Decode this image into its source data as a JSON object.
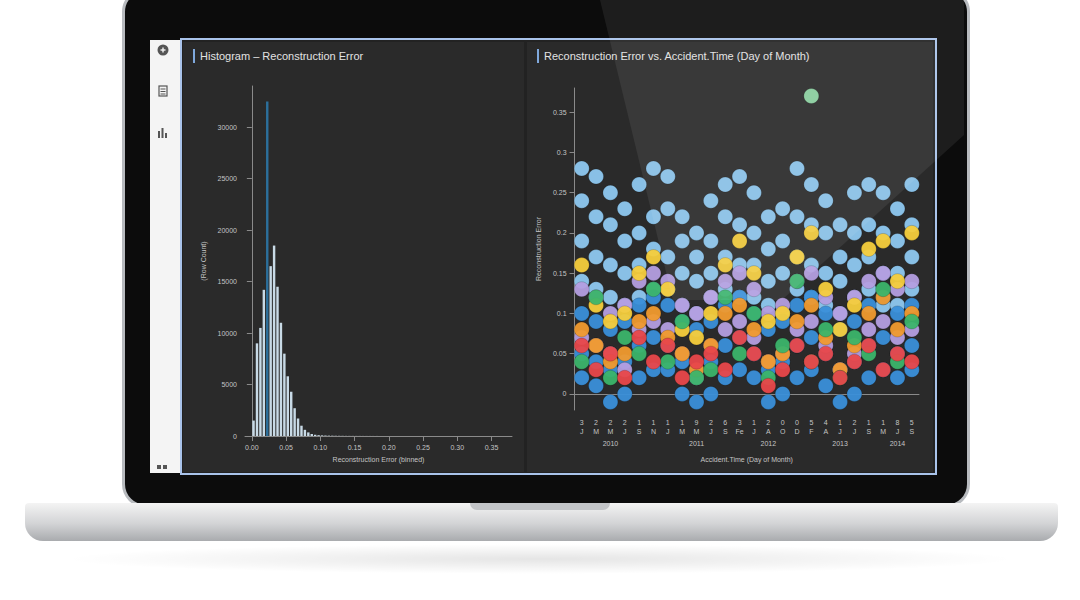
{
  "chart_data": [
    {
      "type": "histogram",
      "title": "Histogram – Reconstruction Error",
      "xlabel": "Reconstruction Error (binned)",
      "ylabel": "(Row Count)",
      "bins": [
        0,
        0.005,
        0.01,
        0.015,
        0.02,
        0.025,
        0.03,
        0.035,
        0.04,
        0.045,
        0.05,
        0.055,
        0.06,
        0.065,
        0.07,
        0.075,
        0.08,
        0.085,
        0.09,
        0.095,
        0.1,
        0.105,
        0.11,
        0.115,
        0.12,
        0.125,
        0.13,
        0.135,
        0.14,
        0.145,
        0.15,
        0.155,
        0.16,
        0.165,
        0.17,
        0.175,
        0.18,
        0.185,
        0.19,
        0.195,
        0.2,
        0.205,
        0.21,
        0.215,
        0.22,
        0.225,
        0.23,
        0.235,
        0.24,
        0.245,
        0.25,
        0.255,
        0.26,
        0.265,
        0.27,
        0.275,
        0.28,
        0.285,
        0.29,
        0.295,
        0.3,
        0.305,
        0.31,
        0.315,
        0.32,
        0.325,
        0.33,
        0.335,
        0.34,
        0.345,
        0.35,
        0.355,
        0.36,
        0.365,
        0.37,
        0.375,
        0.38
      ],
      "values": [
        1500,
        9000,
        10500,
        14200,
        32500,
        16500,
        18500,
        14500,
        11000,
        8000,
        5800,
        4300,
        2700,
        1700,
        1000,
        600,
        350,
        200,
        120,
        80,
        60,
        45,
        35,
        28,
        22,
        18,
        15,
        12,
        10,
        9,
        8,
        7,
        6,
        5,
        5,
        4,
        4,
        3,
        3,
        3,
        2,
        2,
        2,
        2,
        2,
        1,
        1,
        1,
        1,
        1,
        1,
        1,
        1,
        1,
        1,
        1,
        1,
        1,
        1,
        1,
        1,
        1,
        1,
        1,
        1,
        1,
        1,
        1,
        1,
        1,
        1,
        1,
        1,
        1,
        2,
        1
      ],
      "colors": [
        "#c8dae6",
        "#c8dae6",
        "#c8dae6",
        "#c8dae6",
        "#2c6f9b",
        "#c8dae6",
        "#c8dae6",
        "#c8dae6",
        "#c8dae6",
        "#c8dae6",
        "#c8dae6",
        "#c8dae6",
        "#c8dae6",
        "#c8dae6",
        "#c8dae6",
        "#c8dae6",
        "#c8dae6",
        "#c8dae6",
        "#c8dae6",
        "#c8dae6",
        "#c8dae6",
        "#c8dae6",
        "#c8dae6",
        "#c8dae6",
        "#c8dae6",
        "#c8dae6",
        "#c8dae6",
        "#c8dae6",
        "#c8dae6",
        "#c8dae6",
        "#c8dae6",
        "#c8dae6",
        "#c8dae6",
        "#c8dae6",
        "#c8dae6",
        "#c8dae6",
        "#c8dae6",
        "#c8dae6",
        "#c8dae6",
        "#c8dae6",
        "#c8dae6",
        "#c8dae6",
        "#c8dae6",
        "#c8dae6",
        "#c8dae6",
        "#c8dae6",
        "#c8dae6",
        "#c8dae6",
        "#c8dae6",
        "#c8dae6",
        "#c8dae6",
        "#c8dae6",
        "#c8dae6",
        "#c8dae6",
        "#c8dae6",
        "#c8dae6",
        "#c8dae6",
        "#c8dae6",
        "#c8dae6",
        "#c8dae6",
        "#c8dae6",
        "#c8dae6",
        "#c8dae6",
        "#c8dae6",
        "#c8dae6",
        "#c8dae6",
        "#c8dae6",
        "#c8dae6",
        "#c8dae6",
        "#c8dae6",
        "#c8dae6",
        "#c8dae6",
        "#c8dae6",
        "#c8dae6",
        "#c8dae6",
        "#c8dae6"
      ],
      "xlim": [
        -0.01,
        0.38
      ],
      "xticks": [
        {
          "value": 0,
          "label": "0.00"
        },
        {
          "value": 0.05,
          "label": "0.05"
        },
        {
          "value": 0.1,
          "label": "0.10"
        },
        {
          "value": 0.15,
          "label": "0.15"
        },
        {
          "value": 0.2,
          "label": "0.20"
        },
        {
          "value": 0.25,
          "label": "0.25"
        },
        {
          "value": 0.3,
          "label": "0.30"
        },
        {
          "value": 0.35,
          "label": "0.35"
        }
      ],
      "ylim": [
        0,
        34000
      ],
      "yticks": [
        0,
        5000,
        10000,
        15000,
        20000,
        25000,
        30000
      ],
      "grid": false
    },
    {
      "type": "scatter",
      "title": "Reconstruction Error vs. Accident.Time (Day of Month)",
      "xlabel": "Accident.Time (Day of Month)",
      "ylabel": "Reconstruction Error",
      "categories": [
        "3",
        "2",
        "2",
        "2",
        "1",
        "1",
        "1",
        "1",
        "9",
        "2",
        "6",
        "3",
        "1",
        "2",
        "0",
        "0",
        "5",
        "4",
        "1",
        "2",
        "1",
        "1",
        "8",
        "5"
      ],
      "months": [
        "J",
        "M",
        "M",
        "J",
        "S",
        "N",
        "J",
        "M",
        "M",
        "J",
        "S",
        "Fe",
        "J",
        "A",
        "O",
        "D",
        "F",
        "A",
        "J",
        "J",
        "S",
        "M",
        "J",
        "S"
      ],
      "years": [
        "2010",
        "2010",
        "2010",
        "2010",
        "2010",
        "2010",
        "2011",
        "2011",
        "2011",
        "2011",
        "2011",
        "2012",
        "2012",
        "2012",
        "2012",
        "2012",
        "2013",
        "2013",
        "2013",
        "2013",
        "2013",
        "2014",
        "2014",
        "2014"
      ],
      "series": [
        {
          "color": "#8ec8f0",
          "values": [
            [
              0.28,
              0.24,
              0.19,
              0.14
            ],
            [
              0.27,
              0.22,
              0.17,
              0.13
            ],
            [
              0.25,
              0.21,
              0.16,
              0.12
            ],
            [
              0.23,
              0.19,
              0.15,
              0.11
            ],
            [
              0.26,
              0.2,
              0.16,
              0.12
            ],
            [
              0.28,
              0.22,
              0.18,
              0.13
            ],
            [
              0.27,
              0.23,
              0.17,
              0.13
            ],
            [
              0.22,
              0.19,
              0.15,
              0.11
            ],
            [
              0.2,
              0.17,
              0.14,
              0.1
            ],
            [
              0.24,
              0.19,
              0.15,
              0.12
            ],
            [
              0.26,
              0.22,
              0.17,
              0.13
            ],
            [
              0.27,
              0.21,
              0.16,
              0.12
            ],
            [
              0.25,
              0.2,
              0.16,
              0.12
            ],
            [
              0.22,
              0.18,
              0.14,
              0.11
            ],
            [
              0.23,
              0.19,
              0.15,
              0.1
            ],
            [
              0.28,
              0.22,
              0.17,
              0.13
            ],
            [
              0.26,
              0.21,
              0.16,
              0.12
            ],
            [
              0.24,
              0.2,
              0.15,
              0.11
            ],
            [
              0.21,
              0.17,
              0.14,
              0.1
            ],
            [
              0.25,
              0.2,
              0.16,
              0.12
            ],
            [
              0.26,
              0.21,
              0.17,
              0.13
            ],
            [
              0.25,
              0.2,
              0.15,
              0.11
            ],
            [
              0.23,
              0.19,
              0.15,
              0.11
            ],
            [
              0.26,
              0.21,
              0.17,
              0.13
            ]
          ]
        },
        {
          "color": "#3a8fd9",
          "values": [
            [
              0.1,
              0.05,
              0.02
            ],
            [
              0.09,
              0.04,
              0.01
            ],
            [
              0.08,
              0.03,
              -0.01
            ],
            [
              0.09,
              0.04,
              0
            ],
            [
              0.11,
              0.06,
              0.02
            ],
            [
              0.12,
              0.07,
              0.03
            ],
            [
              0.11,
              0.06,
              0.03
            ],
            [
              0.09,
              0.04,
              0
            ],
            [
              0.08,
              0.03,
              -0.01
            ],
            [
              0.09,
              0.04,
              0
            ],
            [
              0.11,
              0.06,
              0.02
            ],
            [
              0.12,
              0.07,
              0.03
            ],
            [
              0.1,
              0.05,
              0.02
            ],
            [
              0.08,
              0.03,
              -0.01
            ],
            [
              0.09,
              0.04,
              0
            ],
            [
              0.11,
              0.06,
              0.02
            ],
            [
              0.12,
              0.07,
              0.03
            ],
            [
              0.1,
              0.05,
              0.01
            ],
            [
              0.08,
              0.03,
              -0.01
            ],
            [
              0.09,
              0.04,
              0
            ],
            [
              0.11,
              0.06,
              0.02
            ],
            [
              0.12,
              0.07,
              0.03
            ],
            [
              0.1,
              0.05,
              0.02
            ],
            [
              0.11,
              0.06,
              0.03
            ]
          ]
        },
        {
          "color": "#b49ee0",
          "values": [
            [
              0.13,
              0.07
            ],
            [
              0.12,
              0.06
            ],
            [
              0.1,
              0.05
            ],
            [
              0.11,
              0.03
            ],
            [
              0.14,
              0.08
            ],
            [
              0.15,
              0.09
            ],
            [
              0.14,
              0.08
            ],
            [
              0.11,
              0.05
            ],
            [
              0.1,
              0.02
            ],
            [
              0.12,
              0.06
            ],
            [
              0.14,
              0.08
            ],
            [
              0.15,
              0.09
            ],
            [
              0.13,
              0.07
            ],
            [
              0.1,
              0.04
            ],
            [
              0.11,
              0.05
            ],
            [
              0.14,
              0.08
            ],
            [
              0.15,
              0.09
            ],
            [
              0.12,
              0.06
            ],
            [
              0.1,
              0.03
            ],
            [
              0.12,
              0.05
            ],
            [
              0.14,
              0.08
            ],
            [
              0.15,
              0.09
            ],
            [
              0.13,
              0.07
            ],
            [
              0.14,
              0.08
            ]
          ]
        },
        {
          "color": "#f5cd3c",
          "values": [
            0.16,
            0.11,
            0.09,
            0.1,
            0.15,
            0.17,
            0.13,
            0.08,
            0.07,
            0.1,
            0.16,
            0.19,
            0.15,
            0.09,
            0.1,
            0.17,
            0.2,
            0.13,
            0.08,
            0.11,
            0.18,
            0.19,
            0.14,
            0.2
          ]
        },
        {
          "color": "#f09a2e",
          "values": [
            0.08,
            0.06,
            0.04,
            0.05,
            0.09,
            0.1,
            0.07,
            0.05,
            0.03,
            0.06,
            0.1,
            0.11,
            0.08,
            0.04,
            0.05,
            0.09,
            0.11,
            0.07,
            0.03,
            0.06,
            0.1,
            0.12,
            0.08,
            0.1
          ]
        },
        {
          "color": "#3bb46a",
          "values": [
            0.04,
            0.12,
            0.02,
            0.07,
            0.05,
            0.13,
            0.04,
            0.09,
            0.02,
            0.03,
            0.12,
            0.05,
            0.1,
            0.02,
            0.06,
            0.14,
            0.04,
            0.08,
            0.02,
            0.07,
            0.05,
            0.13,
            0.04,
            0.09
          ]
        },
        {
          "color": "#e8474a",
          "values": [
            0.06,
            0.03,
            0.05,
            0.02,
            0.07,
            0.04,
            0.06,
            0.02,
            0.04,
            0.05,
            0.03,
            0.07,
            0.05,
            0.01,
            0.03,
            0.06,
            0.04,
            0.05,
            0.02,
            0.04,
            0.06,
            0.03,
            0.05,
            0.04
          ]
        },
        {
          "color": "#8ed6a4",
          "values": [
            null,
            null,
            null,
            null,
            null,
            null,
            null,
            null,
            null,
            null,
            null,
            null,
            null,
            null,
            null,
            null,
            0.37,
            null,
            null,
            null,
            null,
            null,
            null,
            null
          ]
        }
      ],
      "ylim": [
        -0.02,
        0.38
      ],
      "yticks": [
        0,
        0.05,
        0.1,
        0.15,
        0.2,
        0.25,
        0.3,
        0.35
      ],
      "grid": false
    }
  ]
}
